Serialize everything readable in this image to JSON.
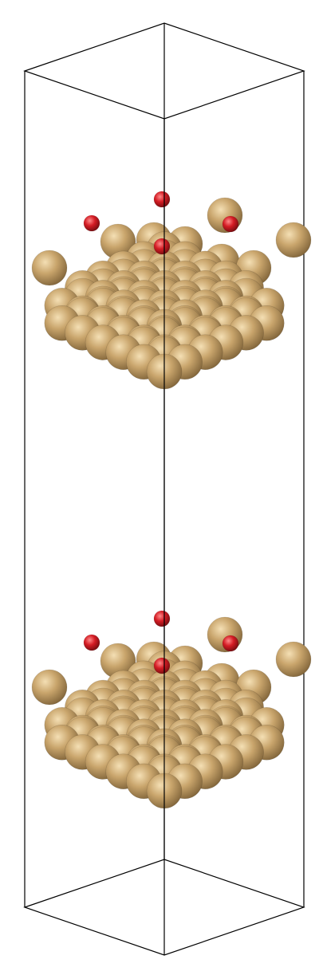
{
  "scene": {
    "kind": "periodic slab structure, two images along c-axis",
    "background": "#ffffff",
    "cell_edge_color": "#000000",
    "atom_types": [
      {
        "element": "metal",
        "color": "#c8a46a",
        "icon": "tan-sphere"
      },
      {
        "element": "oxygen",
        "color": "#e0222a",
        "icon": "red-sphere"
      }
    ],
    "slab_count": 2
  }
}
